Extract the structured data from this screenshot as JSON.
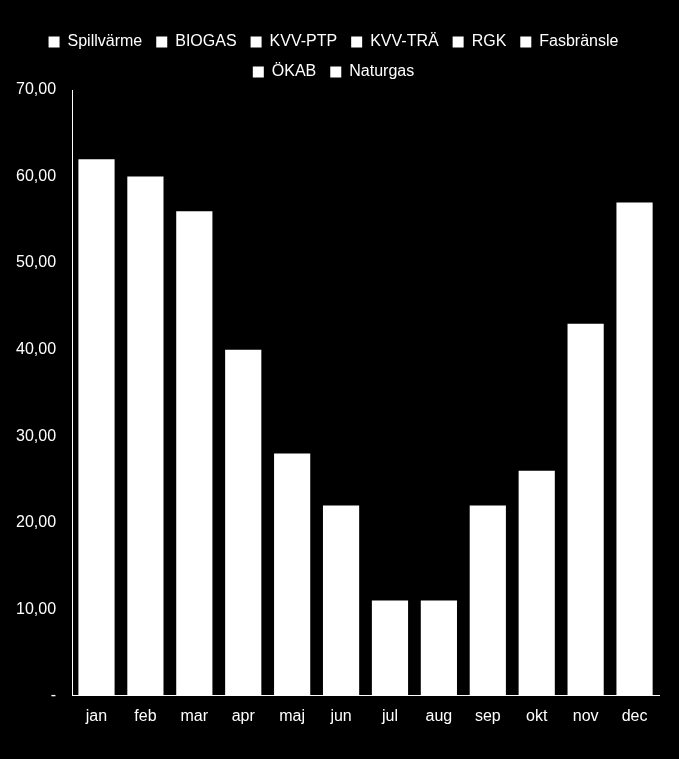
{
  "chart_data": {
    "type": "bar",
    "categories": [
      "jan",
      "feb",
      "mar",
      "apr",
      "maj",
      "jun",
      "jul",
      "aug",
      "sep",
      "okt",
      "nov",
      "dec"
    ],
    "series": [
      {
        "name": "Spillvärme",
        "color": "#ffffff",
        "values": [
          62,
          60,
          56,
          40,
          28,
          22,
          11,
          11,
          22,
          26,
          43,
          57
        ]
      },
      {
        "name": "BIOGAS",
        "color": "#ffffff",
        "values": [
          null,
          null,
          null,
          null,
          null,
          null,
          null,
          null,
          null,
          null,
          null,
          null
        ]
      },
      {
        "name": "KVV-PTP",
        "color": "#ffffff",
        "values": [
          null,
          null,
          null,
          null,
          null,
          null,
          null,
          null,
          null,
          null,
          null,
          null
        ]
      },
      {
        "name": "KVV-TRÄ",
        "color": "#ffffff",
        "values": [
          null,
          null,
          null,
          null,
          null,
          null,
          null,
          null,
          null,
          null,
          null,
          null
        ]
      },
      {
        "name": "RGK",
        "color": "#ffffff",
        "values": [
          null,
          null,
          null,
          null,
          null,
          null,
          null,
          null,
          null,
          null,
          null,
          null
        ]
      },
      {
        "name": "Fasbränsle",
        "color": "#ffffff",
        "values": [
          null,
          null,
          null,
          null,
          null,
          null,
          null,
          null,
          null,
          null,
          null,
          null
        ]
      },
      {
        "name": "ÖKAB",
        "color": "#ffffff",
        "values": [
          null,
          null,
          null,
          null,
          null,
          null,
          null,
          null,
          null,
          null,
          null,
          null
        ]
      },
      {
        "name": "Naturgas",
        "color": "#ffffff",
        "values": [
          null,
          null,
          null,
          null,
          null,
          null,
          null,
          null,
          null,
          null,
          null,
          null
        ]
      }
    ],
    "stacked": true,
    "legend": "top",
    "grid": false,
    "ylim": [
      0,
      70
    ],
    "yticks": [
      {
        "value": 0,
        "label": "-"
      },
      {
        "value": 10,
        "label": "10,00"
      },
      {
        "value": 20,
        "label": "20,00"
      },
      {
        "value": 30,
        "label": "30,00"
      },
      {
        "value": 40,
        "label": "40,00"
      },
      {
        "value": 50,
        "label": "50,00"
      },
      {
        "value": 60,
        "label": "60,00"
      },
      {
        "value": 70,
        "label": "70,00"
      }
    ]
  }
}
